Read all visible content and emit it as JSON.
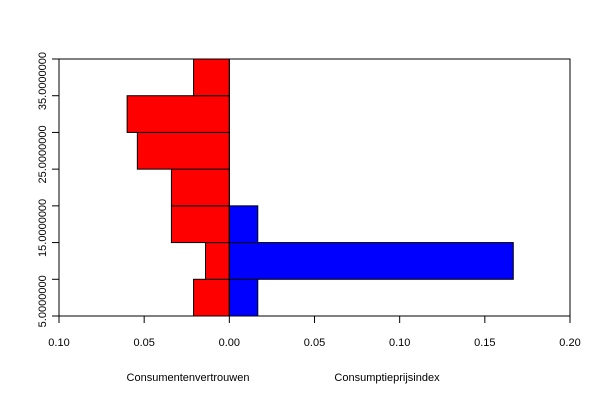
{
  "chart_data": {
    "type": "bar",
    "orientation": "horizontal-back-to-back",
    "bins": [
      {
        "from": 3,
        "to": 8
      },
      {
        "from": 8,
        "to": 13
      },
      {
        "from": 13,
        "to": 18
      },
      {
        "from": 18,
        "to": 23
      },
      {
        "from": 23,
        "to": 28
      },
      {
        "from": 28,
        "to": 33
      },
      {
        "from": 33,
        "to": 38
      }
    ],
    "series": [
      {
        "name": "Consumentenvertrouwen",
        "direction": "left",
        "color": "#ff0000",
        "values": [
          0.021,
          0.014,
          0.034,
          0.034,
          0.054,
          0.06,
          0.021
        ]
      },
      {
        "name": "Consumptieprijsindex",
        "direction": "right",
        "color": "#0000ff",
        "values": [
          0.0167,
          0.1667,
          0.0167,
          0,
          0,
          0,
          0
        ]
      }
    ],
    "xlim": [
      -0.1,
      0.2
    ],
    "ylim": [
      3,
      38
    ],
    "x_ticks": [
      -0.1,
      -0.05,
      0.0,
      0.05,
      0.1,
      0.15,
      0.2
    ],
    "x_tick_labels": [
      "0.10",
      "0.05",
      "0.00",
      "0.05",
      "0.10",
      "0.15",
      "0.20"
    ],
    "y_ticks": [
      3,
      8,
      13,
      18,
      23,
      28,
      33,
      38
    ],
    "y_tick_label_values": [
      5,
      15,
      25,
      35
    ],
    "y_tick_labels": [
      "5.0000000",
      "15.0000000",
      "25.0000000",
      "35.0000000"
    ],
    "xlabel_left": "Consumentenvertrouwen",
    "xlabel_right": "Consumptieprijsindex",
    "grid": false,
    "legend": "none"
  }
}
